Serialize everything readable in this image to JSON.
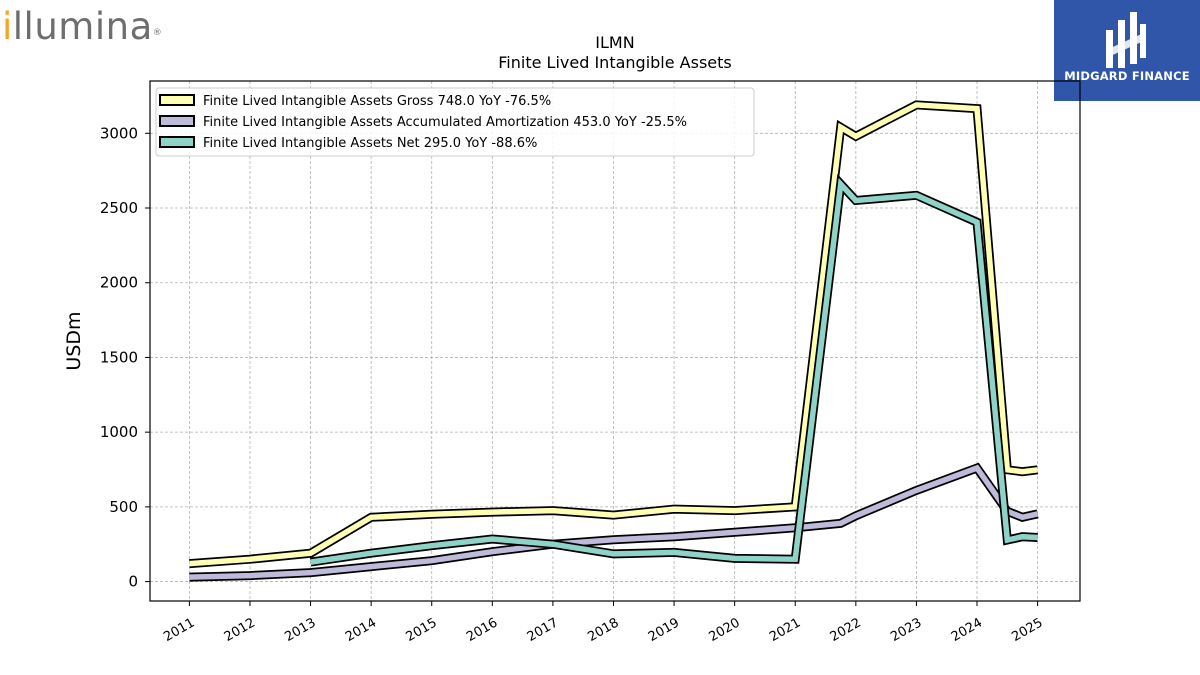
{
  "brand": {
    "logo_first": "i",
    "logo_rest": "llumina",
    "logo_mark": "®"
  },
  "publisher": {
    "name": "MIDGARD FINANCE"
  },
  "chart_data": {
    "type": "line",
    "title": "ILMN",
    "subtitle": "Finite Lived Intangible Assets",
    "ylabel": "USDm",
    "xlabel": "",
    "ylim": [
      -130,
      3350
    ],
    "xlim": [
      2010.35,
      2025.7
    ],
    "x_ticks": [
      2011,
      2012,
      2013,
      2014,
      2015,
      2016,
      2017,
      2018,
      2019,
      2020,
      2021,
      2022,
      2023,
      2024,
      2025
    ],
    "y_ticks": [
      0,
      500,
      1000,
      1500,
      2000,
      2500,
      3000
    ],
    "grid": true,
    "legend_position": "top-left",
    "series": [
      {
        "name": "Finite Lived Intangible Assets Gross",
        "legend": "Finite Lived Intangible Assets Gross  748.0 YoY -76.5%",
        "color": "#ffffb3",
        "x": [
          2011,
          2012,
          2013,
          2014,
          2015,
          2016,
          2017,
          2018,
          2019,
          2020,
          2021,
          2021.75,
          2022,
          2023,
          2024,
          2024.5,
          2024.75,
          2025
        ],
        "y": [
          120,
          150,
          190,
          430,
          450,
          465,
          475,
          445,
          485,
          475,
          500,
          3040,
          2980,
          3190,
          3165,
          748,
          735,
          748
        ]
      },
      {
        "name": "Finite Lived Intangible Assets Accumulated Amortization",
        "legend": "Finite Lived Intangible Assets Accumulated Amortization  453.0 YoY -25.5%",
        "color": "#bebada",
        "x": [
          2011,
          2012,
          2013,
          2014,
          2015,
          2016,
          2017,
          2018,
          2019,
          2020,
          2021,
          2021.75,
          2022,
          2023,
          2024,
          2024.5,
          2024.75,
          2025
        ],
        "y": [
          30,
          40,
          60,
          100,
          140,
          200,
          250,
          280,
          300,
          330,
          360,
          390,
          440,
          610,
          760,
          470,
          430,
          453
        ]
      },
      {
        "name": "Finite Lived Intangible Assets Net",
        "legend": "Finite Lived Intangible Assets Net  295.0 YoY -88.6%",
        "color": "#8dd3c7",
        "x": [
          2013,
          2014,
          2015,
          2016,
          2017,
          2018,
          2019,
          2020,
          2021,
          2021.75,
          2022,
          2023,
          2024,
          2024.5,
          2024.75,
          2025
        ],
        "y": [
          130,
          190,
          240,
          285,
          250,
          185,
          195,
          155,
          150,
          2660,
          2550,
          2585,
          2405,
          278,
          300,
          295
        ]
      }
    ]
  }
}
